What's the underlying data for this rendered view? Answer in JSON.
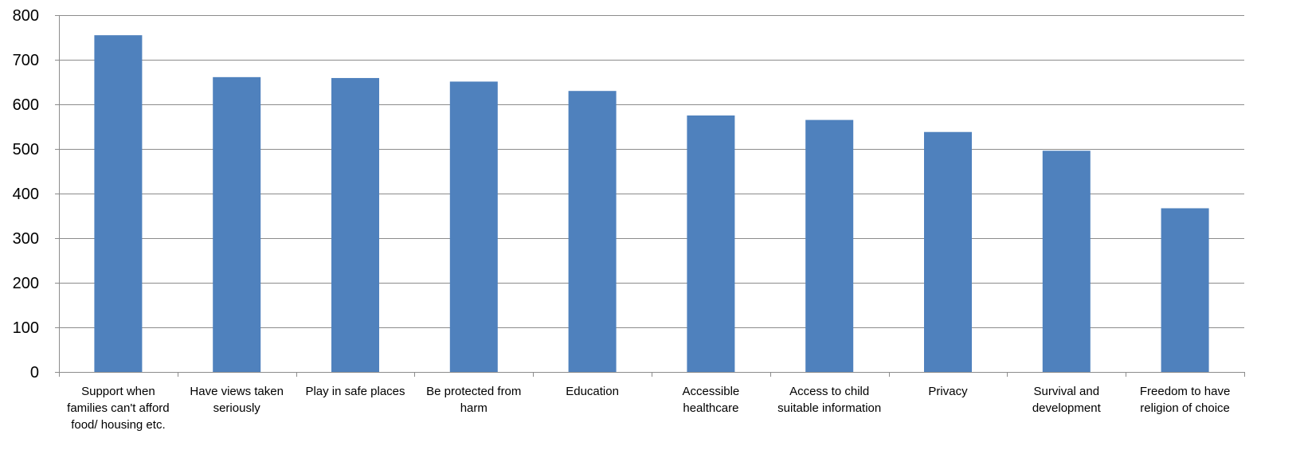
{
  "chart_data": {
    "type": "bar",
    "categories": [
      [
        "Support when",
        "families can't afford",
        "food/ housing etc."
      ],
      [
        "Have views taken",
        "seriously"
      ],
      [
        "Play in safe places"
      ],
      [
        "Be protected from",
        "harm"
      ],
      [
        "Education"
      ],
      [
        "Accessible",
        "healthcare"
      ],
      [
        "Access to child",
        "suitable information"
      ],
      [
        "Privacy"
      ],
      [
        "Survival and",
        "development"
      ],
      [
        "Freedom to have",
        "religion of choice"
      ]
    ],
    "values": [
      755,
      661,
      659,
      651,
      630,
      575,
      565,
      538,
      496,
      367
    ],
    "ylim": [
      0,
      800
    ],
    "yticks": [
      "0",
      "100",
      "200",
      "300",
      "400",
      "500",
      "600",
      "700",
      "800"
    ],
    "grid": true,
    "legend": "none",
    "title": "",
    "xlabel": "",
    "ylabel": "",
    "colors": {
      "bar": "#4f81bd",
      "grid": "#8c8c8c",
      "text": "#000000"
    }
  }
}
